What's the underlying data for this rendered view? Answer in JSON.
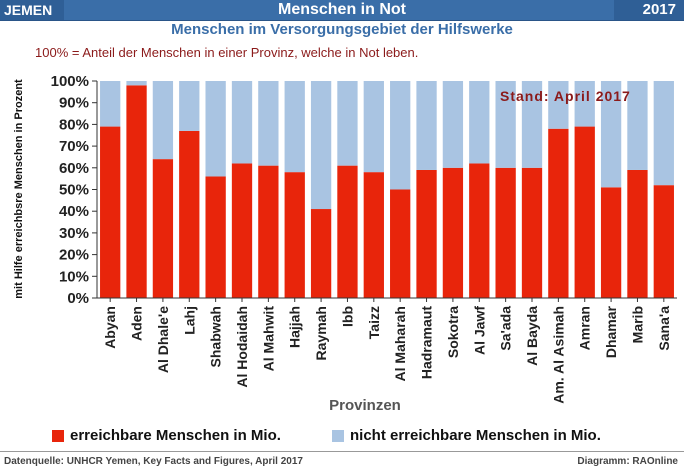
{
  "header": {
    "country": "JEMEN",
    "title": "Menschen in Not",
    "year": "2017"
  },
  "subtitle": "Menschen im Versorgungsgebiet der Hilfswerke",
  "note": "100% = Anteil der Menschen in einer Provinz, welche in Not leben.",
  "stand": "Stand: April 2017",
  "footer": {
    "source": "Datenquelle: UNHCR Yemen, Key Facts and Figures, April 2017",
    "credit": "Diagramm: RAOnline"
  },
  "colors": {
    "reachable": "#e8250b",
    "unreachable": "#a9c4e2",
    "header": "#3a6ea8"
  },
  "chart_data": {
    "type": "bar",
    "stacked": true,
    "xlabel": "Provinzen",
    "ylabel": "mit Hilfe erreichbsre Menschen  in Prozent",
    "ylim": [
      0,
      100
    ],
    "yticks": [
      "0%",
      "10%",
      "20%",
      "30%",
      "40%",
      "50%",
      "60%",
      "70%",
      "80%",
      "90%",
      "100%"
    ],
    "grid": false,
    "legend_position": "bottom",
    "categories": [
      "Abyan",
      "Aden",
      "Al Dhale'e",
      "Lahj",
      "Shabwah",
      "Al Hodaidah",
      "Al Mahwit",
      "Hajjah",
      "Raymah",
      "Ibb",
      "Taizz",
      "Al Maharah",
      "Hadramaut",
      "Sokotra",
      "Al Jawf",
      "Sa'ada",
      "Al Bayda",
      "Am. Al Asimah",
      "Amran",
      "Dhamar",
      "Marib",
      "Sana'a"
    ],
    "series": [
      {
        "name": "erreichbare Menschen in Mio.",
        "values": [
          79,
          98,
          64,
          77,
          56,
          62,
          61,
          58,
          41,
          61,
          58,
          50,
          59,
          60,
          62,
          60,
          60,
          78,
          79,
          51,
          59,
          52
        ]
      },
      {
        "name": "nicht erreichbare Menschen in Mio.",
        "values": [
          21,
          2,
          36,
          23,
          44,
          38,
          39,
          42,
          59,
          39,
          42,
          50,
          41,
          40,
          38,
          40,
          40,
          22,
          21,
          49,
          41,
          48
        ]
      }
    ]
  }
}
